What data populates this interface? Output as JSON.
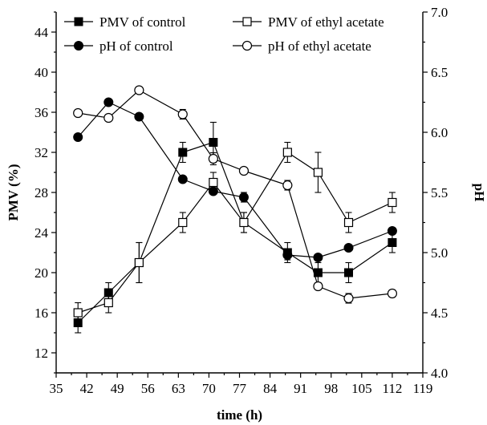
{
  "chart_data": {
    "type": "line",
    "xlabel": "time (h)",
    "ylabel_left": "PMV (%)",
    "ylabel_right": "pH",
    "xlim": [
      35,
      119
    ],
    "x_ticks": [
      35,
      42,
      49,
      56,
      63,
      70,
      77,
      84,
      91,
      98,
      105,
      112,
      119
    ],
    "ylim_left": [
      10,
      46
    ],
    "y_left_ticks": [
      12,
      16,
      20,
      24,
      28,
      32,
      36,
      40,
      44
    ],
    "ylim_right": [
      4.0,
      7.0
    ],
    "y_right_ticks": [
      "4.0",
      "4.5",
      "5.0",
      "5.5",
      "6.0",
      "6.5",
      "7.0"
    ],
    "legend_position": "top",
    "grid": false,
    "series": [
      {
        "name": "PMV of control",
        "axis": "left",
        "marker": "filled-square",
        "x": [
          40,
          47,
          54,
          64,
          71,
          78,
          88,
          95,
          102,
          112
        ],
        "y": [
          15,
          18,
          21,
          32,
          33,
          25,
          22,
          20,
          20,
          23
        ],
        "err": [
          1,
          1,
          2,
          1,
          2,
          1,
          1,
          1,
          1,
          1
        ]
      },
      {
        "name": "PMV of ethyl acetate",
        "axis": "left",
        "marker": "open-square",
        "x": [
          40,
          47,
          54,
          64,
          71,
          78,
          88,
          95,
          102,
          112
        ],
        "y": [
          16,
          17,
          21,
          25,
          29,
          25,
          32,
          30,
          25,
          27
        ],
        "err": [
          1,
          1,
          2,
          1,
          1,
          1,
          1,
          2,
          1,
          1
        ]
      },
      {
        "name": "pH of control",
        "axis": "right",
        "marker": "filled-circle",
        "x": [
          40,
          47,
          54,
          64,
          71,
          78,
          88,
          95,
          102,
          112
        ],
        "y": [
          5.96,
          6.25,
          6.13,
          5.61,
          5.51,
          5.46,
          4.98,
          4.96,
          5.04,
          5.18
        ],
        "err": [
          0,
          0,
          0,
          0,
          0,
          0.04,
          0.04,
          0,
          0,
          0
        ]
      },
      {
        "name": "pH of ethyl acetate",
        "axis": "right",
        "marker": "open-circle",
        "x": [
          40,
          47,
          54,
          64,
          71,
          78,
          88,
          95,
          102,
          112
        ],
        "y": [
          6.16,
          6.12,
          6.35,
          6.15,
          5.78,
          5.68,
          5.56,
          4.72,
          4.62,
          4.66
        ],
        "err": [
          0,
          0,
          0,
          0.04,
          0.05,
          0,
          0.04,
          0,
          0.04,
          0.03
        ]
      }
    ]
  }
}
